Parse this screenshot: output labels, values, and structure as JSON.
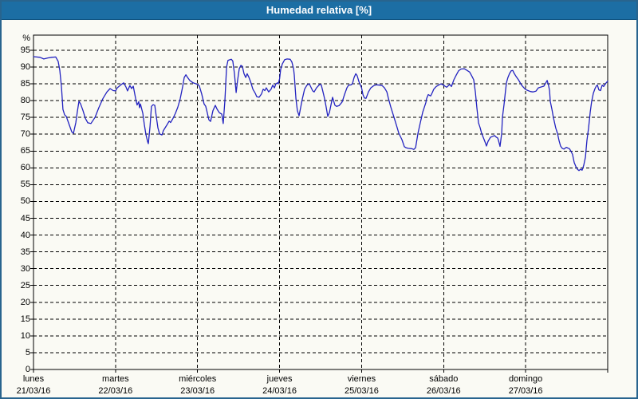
{
  "window": {
    "title": "Humedad relativa [%]"
  },
  "colors": {
    "titlebar_bg": "#1c6ea4",
    "titlebar_text": "#ffffff",
    "outer_border": "#28648e",
    "background": "#fafaf4",
    "plot_border": "#000000",
    "grid": "#000000",
    "line": "#2323c0"
  },
  "chart_data": {
    "type": "line",
    "title": "Humedad relativa [%]",
    "y_unit": "%",
    "x_unit": "hours",
    "xlim_hours": [
      0,
      168
    ],
    "ylim": [
      0,
      99.5
    ],
    "grid": "dashed",
    "legend": "none",
    "y_ticks": [
      95,
      90,
      85,
      80,
      75,
      70,
      65,
      60,
      55,
      50,
      45,
      40,
      35,
      30,
      25,
      20,
      15,
      10,
      5,
      0
    ],
    "x_day_labels": [
      {
        "name": "lunes",
        "date": "21/03/16"
      },
      {
        "name": "martes",
        "date": "22/03/16"
      },
      {
        "name": "miércoles",
        "date": "23/03/16"
      },
      {
        "name": "jueves",
        "date": "24/03/16"
      },
      {
        "name": "viernes",
        "date": "25/03/16"
      },
      {
        "name": "sábado",
        "date": "26/03/16"
      },
      {
        "name": "domingo",
        "date": "27/03/16"
      }
    ],
    "series": [
      {
        "name": "Humedad relativa",
        "color": "#2323c0",
        "points": [
          [
            0,
            93.1
          ],
          [
            1.9,
            92.9
          ],
          [
            3,
            92.4
          ],
          [
            4.2,
            92.7
          ],
          [
            5.4,
            92.9
          ],
          [
            6.5,
            93
          ],
          [
            7.2,
            91.7
          ],
          [
            7.7,
            89
          ],
          [
            8.2,
            84
          ],
          [
            8.6,
            77.4
          ],
          [
            9.1,
            75.8
          ],
          [
            9.6,
            75.3
          ],
          [
            10.5,
            72.7
          ],
          [
            11.2,
            70.7
          ],
          [
            11.7,
            70.3
          ],
          [
            12.4,
            73.5
          ],
          [
            12.8,
            76.6
          ],
          [
            13.3,
            79.8
          ],
          [
            13.8,
            79
          ],
          [
            14.5,
            77
          ],
          [
            15.2,
            74.7
          ],
          [
            15.9,
            73.4
          ],
          [
            16.8,
            73.2
          ],
          [
            18,
            75
          ],
          [
            19.1,
            77.9
          ],
          [
            20.3,
            80.6
          ],
          [
            21.5,
            82.6
          ],
          [
            22.4,
            83.6
          ],
          [
            23.3,
            83
          ],
          [
            24,
            82.9
          ],
          [
            24.5,
            83.8
          ],
          [
            25.7,
            84.8
          ],
          [
            26.4,
            85.3
          ],
          [
            27.1,
            84
          ],
          [
            27.5,
            82.9
          ],
          [
            28.2,
            84.5
          ],
          [
            28.7,
            83.6
          ],
          [
            29.2,
            84.3
          ],
          [
            29.9,
            80.6
          ],
          [
            30.3,
            78.7
          ],
          [
            30.8,
            79.7
          ],
          [
            31,
            77.9
          ],
          [
            31.3,
            79
          ],
          [
            32,
            76.2
          ],
          [
            32.4,
            73
          ],
          [
            32.9,
            69.9
          ],
          [
            33.4,
            67.8
          ],
          [
            33.6,
            67.2
          ],
          [
            34.1,
            72.3
          ],
          [
            34.5,
            78.3
          ],
          [
            35,
            78.8
          ],
          [
            35.5,
            78.6
          ],
          [
            35.9,
            75.4
          ],
          [
            36.4,
            71.9
          ],
          [
            36.9,
            70.1
          ],
          [
            37.6,
            69.8
          ],
          [
            38,
            71.1
          ],
          [
            39,
            72.7
          ],
          [
            39.7,
            73.9
          ],
          [
            40.1,
            73.5
          ],
          [
            40.8,
            74.7
          ],
          [
            41.5,
            76.2
          ],
          [
            42.2,
            78
          ],
          [
            42.9,
            80.5
          ],
          [
            43.6,
            84
          ],
          [
            44.1,
            86.9
          ],
          [
            44.6,
            87.7
          ],
          [
            45,
            87
          ],
          [
            45.7,
            86
          ],
          [
            46.7,
            85.3
          ],
          [
            47.6,
            85
          ],
          [
            48,
            84.8
          ],
          [
            48.5,
            84.4
          ],
          [
            49.2,
            82
          ],
          [
            49.9,
            79
          ],
          [
            50.4,
            78.3
          ],
          [
            50.9,
            76.2
          ],
          [
            51.3,
            74.3
          ],
          [
            51.8,
            73.8
          ],
          [
            52.5,
            77
          ],
          [
            53.2,
            78.6
          ],
          [
            53.7,
            77.5
          ],
          [
            54.4,
            76.4
          ],
          [
            55.1,
            76
          ],
          [
            55.5,
            73.2
          ],
          [
            56,
            80
          ],
          [
            56.5,
            90
          ],
          [
            56.9,
            92
          ],
          [
            57.9,
            92.3
          ],
          [
            58.3,
            91.8
          ],
          [
            58.8,
            88
          ],
          [
            59.3,
            82.4
          ],
          [
            59.7,
            86
          ],
          [
            60.2,
            89.5
          ],
          [
            60.7,
            90.5
          ],
          [
            61.1,
            90.2
          ],
          [
            61.6,
            88
          ],
          [
            62.1,
            86.9
          ],
          [
            62.5,
            88
          ],
          [
            63,
            87
          ],
          [
            63.5,
            85.7
          ],
          [
            64.2,
            83.4
          ],
          [
            64.9,
            82.2
          ],
          [
            65.3,
            81.2
          ],
          [
            66,
            81
          ],
          [
            66.7,
            82
          ],
          [
            67.2,
            83.4
          ],
          [
            67.7,
            83
          ],
          [
            68.1,
            83.8
          ],
          [
            68.8,
            82.6
          ],
          [
            69.5,
            83.4
          ],
          [
            70,
            84.6
          ],
          [
            70.5,
            83.8
          ],
          [
            70.9,
            85
          ],
          [
            71.4,
            85.3
          ],
          [
            71.6,
            85
          ],
          [
            72,
            86.5
          ],
          [
            72.3,
            89.3
          ],
          [
            72.8,
            90.9
          ],
          [
            73.5,
            92.2
          ],
          [
            74.2,
            92.4
          ],
          [
            75.1,
            92.3
          ],
          [
            75.6,
            91.5
          ],
          [
            76.1,
            89.5
          ],
          [
            76.3,
            87.6
          ],
          [
            76.8,
            80.5
          ],
          [
            77.2,
            77
          ],
          [
            77.7,
            75.5
          ],
          [
            78.6,
            80.3
          ],
          [
            79.3,
            83.4
          ],
          [
            80,
            84.6
          ],
          [
            80.7,
            85
          ],
          [
            81.7,
            82.9
          ],
          [
            82.1,
            82.6
          ],
          [
            82.8,
            83.8
          ],
          [
            83.8,
            84.9
          ],
          [
            84.2,
            84.6
          ],
          [
            84.7,
            82.6
          ],
          [
            85.2,
            80.5
          ],
          [
            85.6,
            78.2
          ],
          [
            86.1,
            75.3
          ],
          [
            86.6,
            76.5
          ],
          [
            87,
            78.6
          ],
          [
            87.5,
            81
          ],
          [
            88.2,
            78.6
          ],
          [
            88.7,
            78.3
          ],
          [
            89.4,
            78.5
          ],
          [
            90.3,
            79.6
          ],
          [
            91,
            81.8
          ],
          [
            91.7,
            83.8
          ],
          [
            92.2,
            84.6
          ],
          [
            92.9,
            84.7
          ],
          [
            93.3,
            85
          ],
          [
            93.8,
            86.9
          ],
          [
            94.3,
            88
          ],
          [
            94.7,
            87.4
          ],
          [
            95.2,
            85.7
          ],
          [
            96,
            83.8
          ],
          [
            96.4,
            81.8
          ],
          [
            96.8,
            80.8
          ],
          [
            97.3,
            80.7
          ],
          [
            98,
            82.6
          ],
          [
            98.7,
            83.8
          ],
          [
            99.6,
            84.5
          ],
          [
            100.3,
            84.7
          ],
          [
            101.3,
            84.6
          ],
          [
            102,
            84.5
          ],
          [
            102.7,
            83.8
          ],
          [
            103.4,
            82.6
          ],
          [
            103.8,
            80.8
          ],
          [
            104.5,
            78.2
          ],
          [
            105.5,
            75
          ],
          [
            106.2,
            72.7
          ],
          [
            106.9,
            70.3
          ],
          [
            107.8,
            68.4
          ],
          [
            108.5,
            66.3
          ],
          [
            109,
            66
          ],
          [
            109.7,
            65.8
          ],
          [
            110.6,
            65.7
          ],
          [
            111.3,
            65.5
          ],
          [
            111.8,
            66
          ],
          [
            112.5,
            70.3
          ],
          [
            113.2,
            73.5
          ],
          [
            113.9,
            76.6
          ],
          [
            114.8,
            79.4
          ],
          [
            115,
            80.6
          ],
          [
            115.5,
            81.8
          ],
          [
            116,
            81.5
          ],
          [
            116.2,
            81.4
          ],
          [
            116.7,
            82.4
          ],
          [
            117.1,
            83.4
          ],
          [
            117.8,
            84.2
          ],
          [
            118.5,
            84.6
          ],
          [
            119.2,
            85
          ],
          [
            120,
            84.6
          ],
          [
            120.4,
            84.3
          ],
          [
            120.9,
            84
          ],
          [
            121.3,
            84.4
          ],
          [
            121.8,
            84.8
          ],
          [
            122.3,
            84.2
          ],
          [
            123,
            86.2
          ],
          [
            123.7,
            87.6
          ],
          [
            124.4,
            88.9
          ],
          [
            125.1,
            89.4
          ],
          [
            126,
            89.5
          ],
          [
            126.7,
            89.1
          ],
          [
            127.6,
            88.5
          ],
          [
            128.3,
            87.2
          ],
          [
            128.8,
            86.2
          ],
          [
            129.3,
            82.5
          ],
          [
            129.7,
            78
          ],
          [
            130.2,
            73.4
          ],
          [
            130.7,
            71.9
          ],
          [
            131.1,
            70.3
          ],
          [
            131.8,
            68.5
          ],
          [
            132.3,
            67.2
          ],
          [
            132.5,
            66.5
          ],
          [
            133,
            67.9
          ],
          [
            133.7,
            69.1
          ],
          [
            134.4,
            69.4
          ],
          [
            134.9,
            69.6
          ],
          [
            135.3,
            69.2
          ],
          [
            135.8,
            68.9
          ],
          [
            136,
            68.3
          ],
          [
            136.5,
            66.4
          ],
          [
            137,
            70.3
          ],
          [
            137.2,
            75
          ],
          [
            137.7,
            79
          ],
          [
            138.1,
            83
          ],
          [
            138.4,
            85.4
          ],
          [
            138.8,
            86.9
          ],
          [
            139.3,
            88.1
          ],
          [
            139.8,
            88.9
          ],
          [
            140.2,
            89
          ],
          [
            140.7,
            88
          ],
          [
            141.2,
            87.2
          ],
          [
            141.9,
            86.2
          ],
          [
            142.8,
            84.6
          ],
          [
            143.5,
            83.8
          ],
          [
            144,
            83.3
          ],
          [
            144.7,
            83
          ],
          [
            145.4,
            82.7
          ],
          [
            146.1,
            82.6
          ],
          [
            147,
            82.8
          ],
          [
            147.7,
            83.8
          ],
          [
            148.6,
            84.1
          ],
          [
            149.3,
            84.3
          ],
          [
            150,
            85.5
          ],
          [
            150.3,
            86
          ],
          [
            150.7,
            84.5
          ],
          [
            151,
            83
          ],
          [
            151.2,
            79.8
          ],
          [
            151.7,
            77.4
          ],
          [
            152.1,
            75
          ],
          [
            152.8,
            71.8
          ],
          [
            153.3,
            70.3
          ],
          [
            153.8,
            68
          ],
          [
            154.2,
            66.5
          ],
          [
            154.7,
            65.8
          ],
          [
            155.2,
            65.6
          ],
          [
            155.9,
            66.1
          ],
          [
            156.3,
            65.9
          ],
          [
            156.8,
            65.7
          ],
          [
            157.3,
            64.9
          ],
          [
            157.7,
            64
          ],
          [
            158.2,
            61.6
          ],
          [
            158.7,
            60.4
          ],
          [
            159.1,
            59.6
          ],
          [
            159.6,
            59.2
          ],
          [
            160.1,
            59.6
          ],
          [
            160.5,
            59.3
          ],
          [
            161,
            60.8
          ],
          [
            161.5,
            63.2
          ],
          [
            161.9,
            68
          ],
          [
            162.4,
            71.8
          ],
          [
            162.9,
            76.6
          ],
          [
            163.3,
            79.8
          ],
          [
            163.8,
            82.2
          ],
          [
            164.3,
            83.6
          ],
          [
            164.7,
            84.4
          ],
          [
            165,
            84.6
          ],
          [
            165.4,
            83.2
          ],
          [
            165.9,
            83
          ],
          [
            166.4,
            84.6
          ],
          [
            166.8,
            84.2
          ],
          [
            167.3,
            85
          ],
          [
            168,
            85.8
          ]
        ]
      }
    ]
  }
}
